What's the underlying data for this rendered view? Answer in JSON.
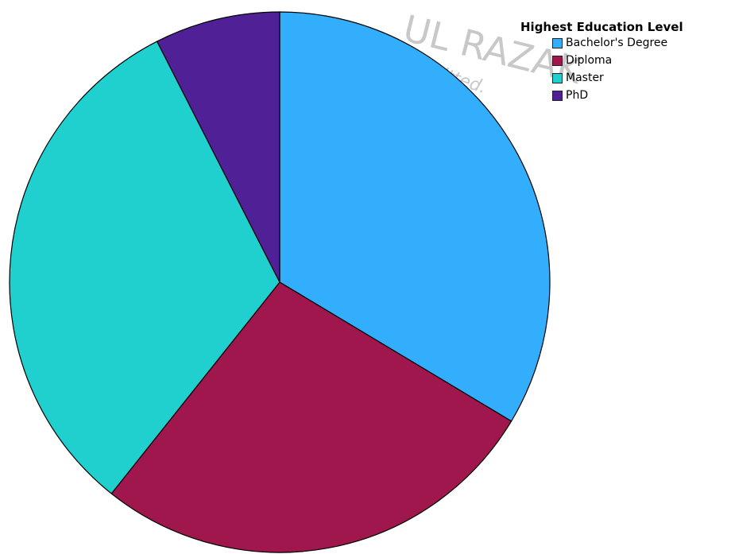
{
  "chart_data": {
    "type": "pie",
    "legend_title": "Highest Education Level",
    "legend_position": "top-right",
    "start": "12 o'clock",
    "direction": "clockwise",
    "slices": [
      {
        "label": "Bachelor's Degree",
        "value": 33.6,
        "color": "#32AEFC"
      },
      {
        "label": "Diploma",
        "value": 27.1,
        "color": "#A0174E"
      },
      {
        "label": "Master",
        "value": 31.8,
        "color": "#20D0CE"
      },
      {
        "label": "PhD",
        "value": 7.5,
        "color": "#502096"
      }
    ]
  },
  "watermark": {
    "line1": "UL RAZAK",
    "line2": "printing, is not permitted."
  }
}
